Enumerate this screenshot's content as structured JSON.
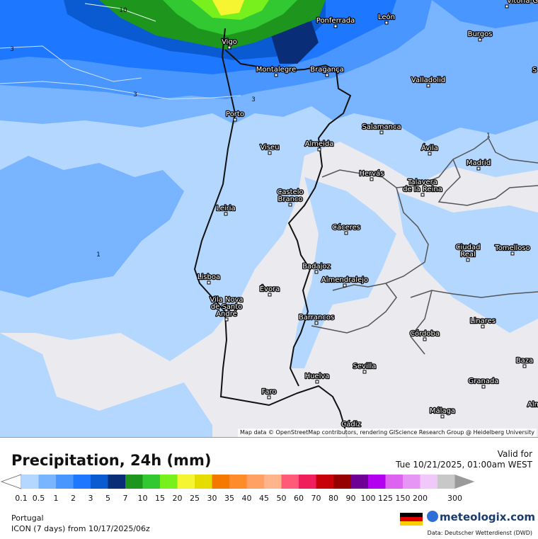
{
  "map": {
    "attribution": "Map data © OpenStreetMap contributors, rendering GIScience Research Group @ Heidelberg University",
    "cities": [
      {
        "name": "Vitoria-G"
      },
      {
        "name": "Ponferrada"
      },
      {
        "name": "León"
      },
      {
        "name": "Vigo"
      },
      {
        "name": "Burgos"
      },
      {
        "name": "Montalegre"
      },
      {
        "name": "Bragança"
      },
      {
        "name": "Valladolid"
      },
      {
        "name": "Porto"
      },
      {
        "name": "Salamanca"
      },
      {
        "name": "Viseu"
      },
      {
        "name": "Almeida"
      },
      {
        "name": "Ávila"
      },
      {
        "name": "Madrid"
      },
      {
        "name": "Hervás"
      },
      {
        "name": "Talavera de la Reina"
      },
      {
        "name": "Leiria"
      },
      {
        "name": "Castelo Branco"
      },
      {
        "name": "Cáceres"
      },
      {
        "name": "Ciudad Real"
      },
      {
        "name": "Tomelloso"
      },
      {
        "name": "Badajoz"
      },
      {
        "name": "Lisboa"
      },
      {
        "name": "Almendralejo"
      },
      {
        "name": "Évora"
      },
      {
        "name": "Vila Nova de Santo André"
      },
      {
        "name": "Barrancos"
      },
      {
        "name": "Linares"
      },
      {
        "name": "Córdoba"
      },
      {
        "name": "Sevilla"
      },
      {
        "name": "Baza"
      },
      {
        "name": "Granada"
      },
      {
        "name": "Faro"
      },
      {
        "name": "Huelva"
      },
      {
        "name": "Málaga"
      },
      {
        "name": "Alm"
      },
      {
        "name": "Cádiz"
      },
      {
        "name": "S"
      }
    ],
    "contour_labels": [
      "10",
      "3",
      "3",
      "3",
      "1",
      "1"
    ]
  },
  "legend": {
    "title": "Precipitation, 24h (mm)",
    "valid_label": "Valid for",
    "valid_time": "Tue 10/21/2025, 01:00am WEST",
    "scale": [
      {
        "value": "0.1",
        "color": "#b4d7ff"
      },
      {
        "value": "0.5",
        "color": "#78b4ff"
      },
      {
        "value": "1",
        "color": "#4a96ff"
      },
      {
        "value": "2",
        "color": "#1e78ff"
      },
      {
        "value": "3",
        "color": "#0a5ad2"
      },
      {
        "value": "5",
        "color": "#0a2d78"
      },
      {
        "value": "7",
        "color": "#1e961e"
      },
      {
        "value": "10",
        "color": "#32c832"
      },
      {
        "value": "15",
        "color": "#78f01e"
      },
      {
        "value": "20",
        "color": "#f5f532"
      },
      {
        "value": "25",
        "color": "#e6dc00"
      },
      {
        "value": "30",
        "color": "#f57800"
      },
      {
        "value": "35",
        "color": "#ff8c28"
      },
      {
        "value": "40",
        "color": "#ffa064"
      },
      {
        "value": "45",
        "color": "#ffb48c"
      },
      {
        "value": "50",
        "color": "#ff5a78"
      },
      {
        "value": "60",
        "color": "#f01e5a"
      },
      {
        "value": "70",
        "color": "#c8000a"
      },
      {
        "value": "80",
        "color": "#960000"
      },
      {
        "value": "90",
        "color": "#6e0096"
      },
      {
        "value": "100",
        "color": "#b400f0"
      },
      {
        "value": "125",
        "color": "#dc64f0"
      },
      {
        "value": "150",
        "color": "#e696f5"
      },
      {
        "value": "200",
        "color": "#f0c8fa"
      },
      {
        "value": "300",
        "color": "#f5f0fa"
      }
    ],
    "after_300_color": "#c8c8c8",
    "region": "Portugal",
    "model": "ICON (7 days)  from  10/17/2025/06z",
    "brand": "meteologix.com",
    "source": "Data: Deutscher Wetterdienst (DWD)"
  }
}
